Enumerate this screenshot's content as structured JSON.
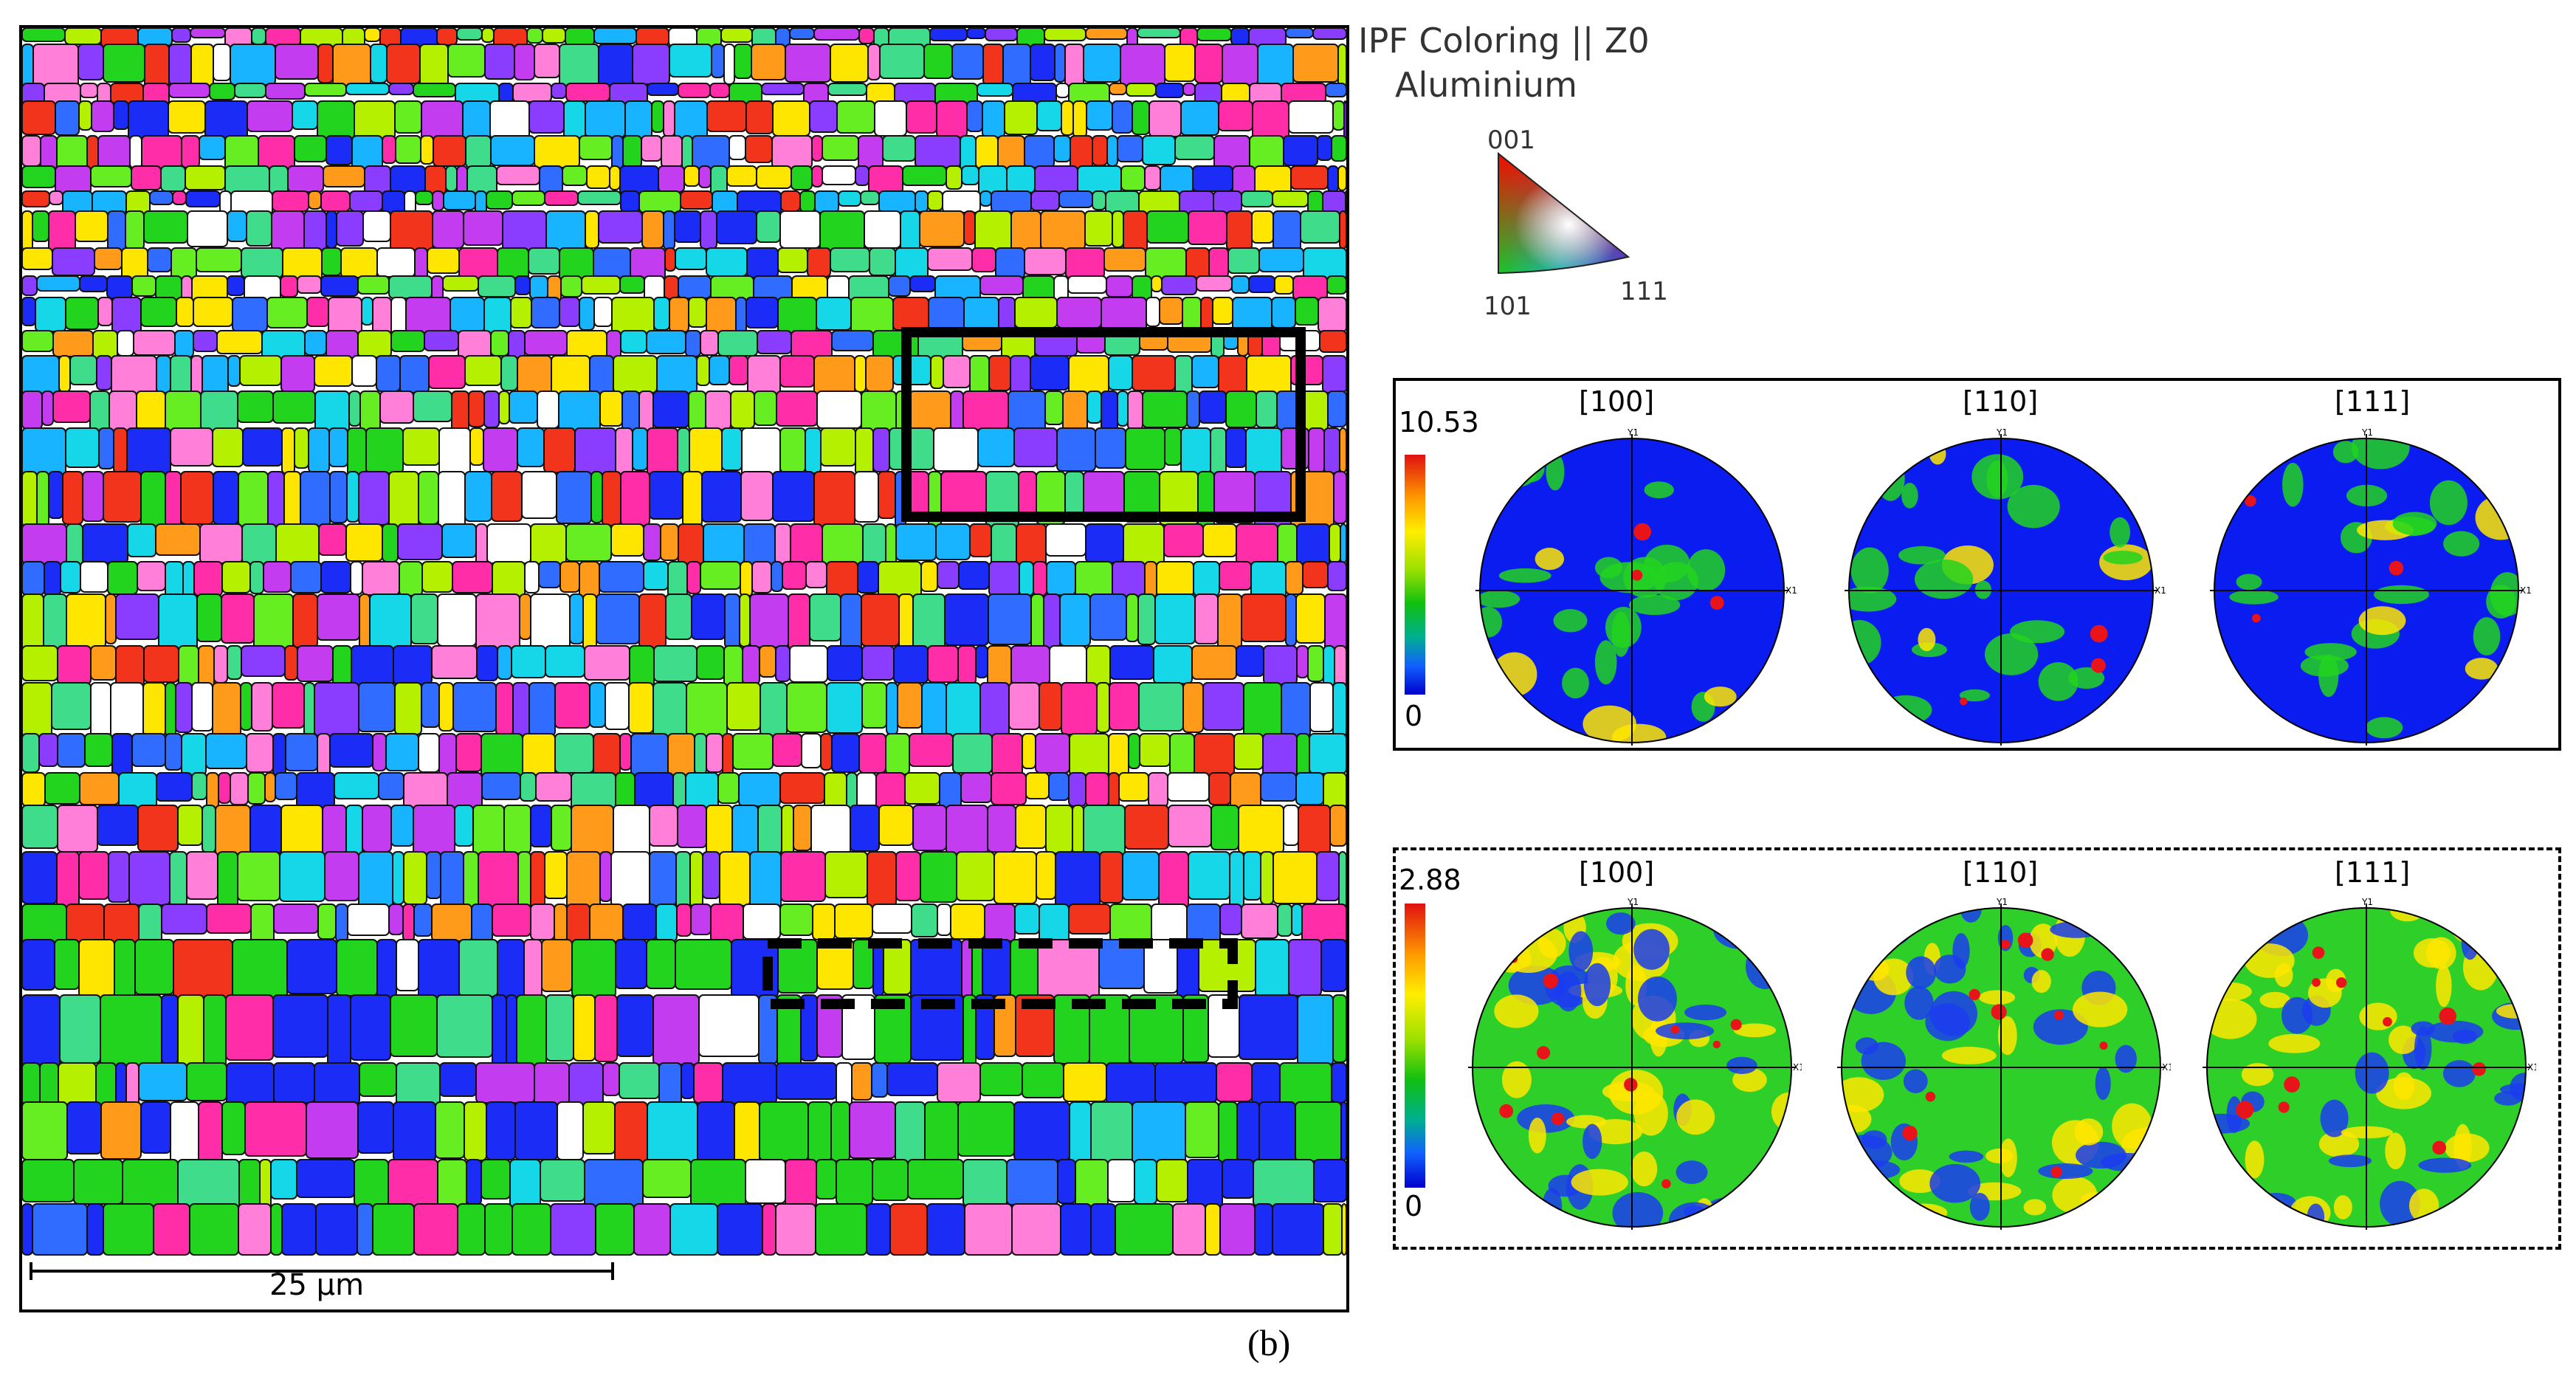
{
  "ebsd_map": {
    "scale_bar_label": "25 µm",
    "figure_label": "(b)"
  },
  "ipf_legend": {
    "title": "IPF Coloring || Z0",
    "phase": "Aluminium",
    "corner_top": "001",
    "corner_left": "101",
    "corner_right": "111"
  },
  "pole_figures_solid": {
    "scale_max": "10.53",
    "scale_min": "0",
    "poles": [
      "[100]",
      "[110]",
      "[111]"
    ]
  },
  "pole_figures_dashed": {
    "scale_max": "2.88",
    "scale_min": "0",
    "poles": [
      "[100]",
      "[110]",
      "[111]"
    ]
  },
  "axis_labels": {
    "y": "Y1",
    "x": "X1"
  },
  "colors": {
    "blue": "#0a1cf0",
    "green": "#22d41e",
    "yellow": "#ffe600",
    "red": "#e8141a",
    "frame": "#000000"
  }
}
